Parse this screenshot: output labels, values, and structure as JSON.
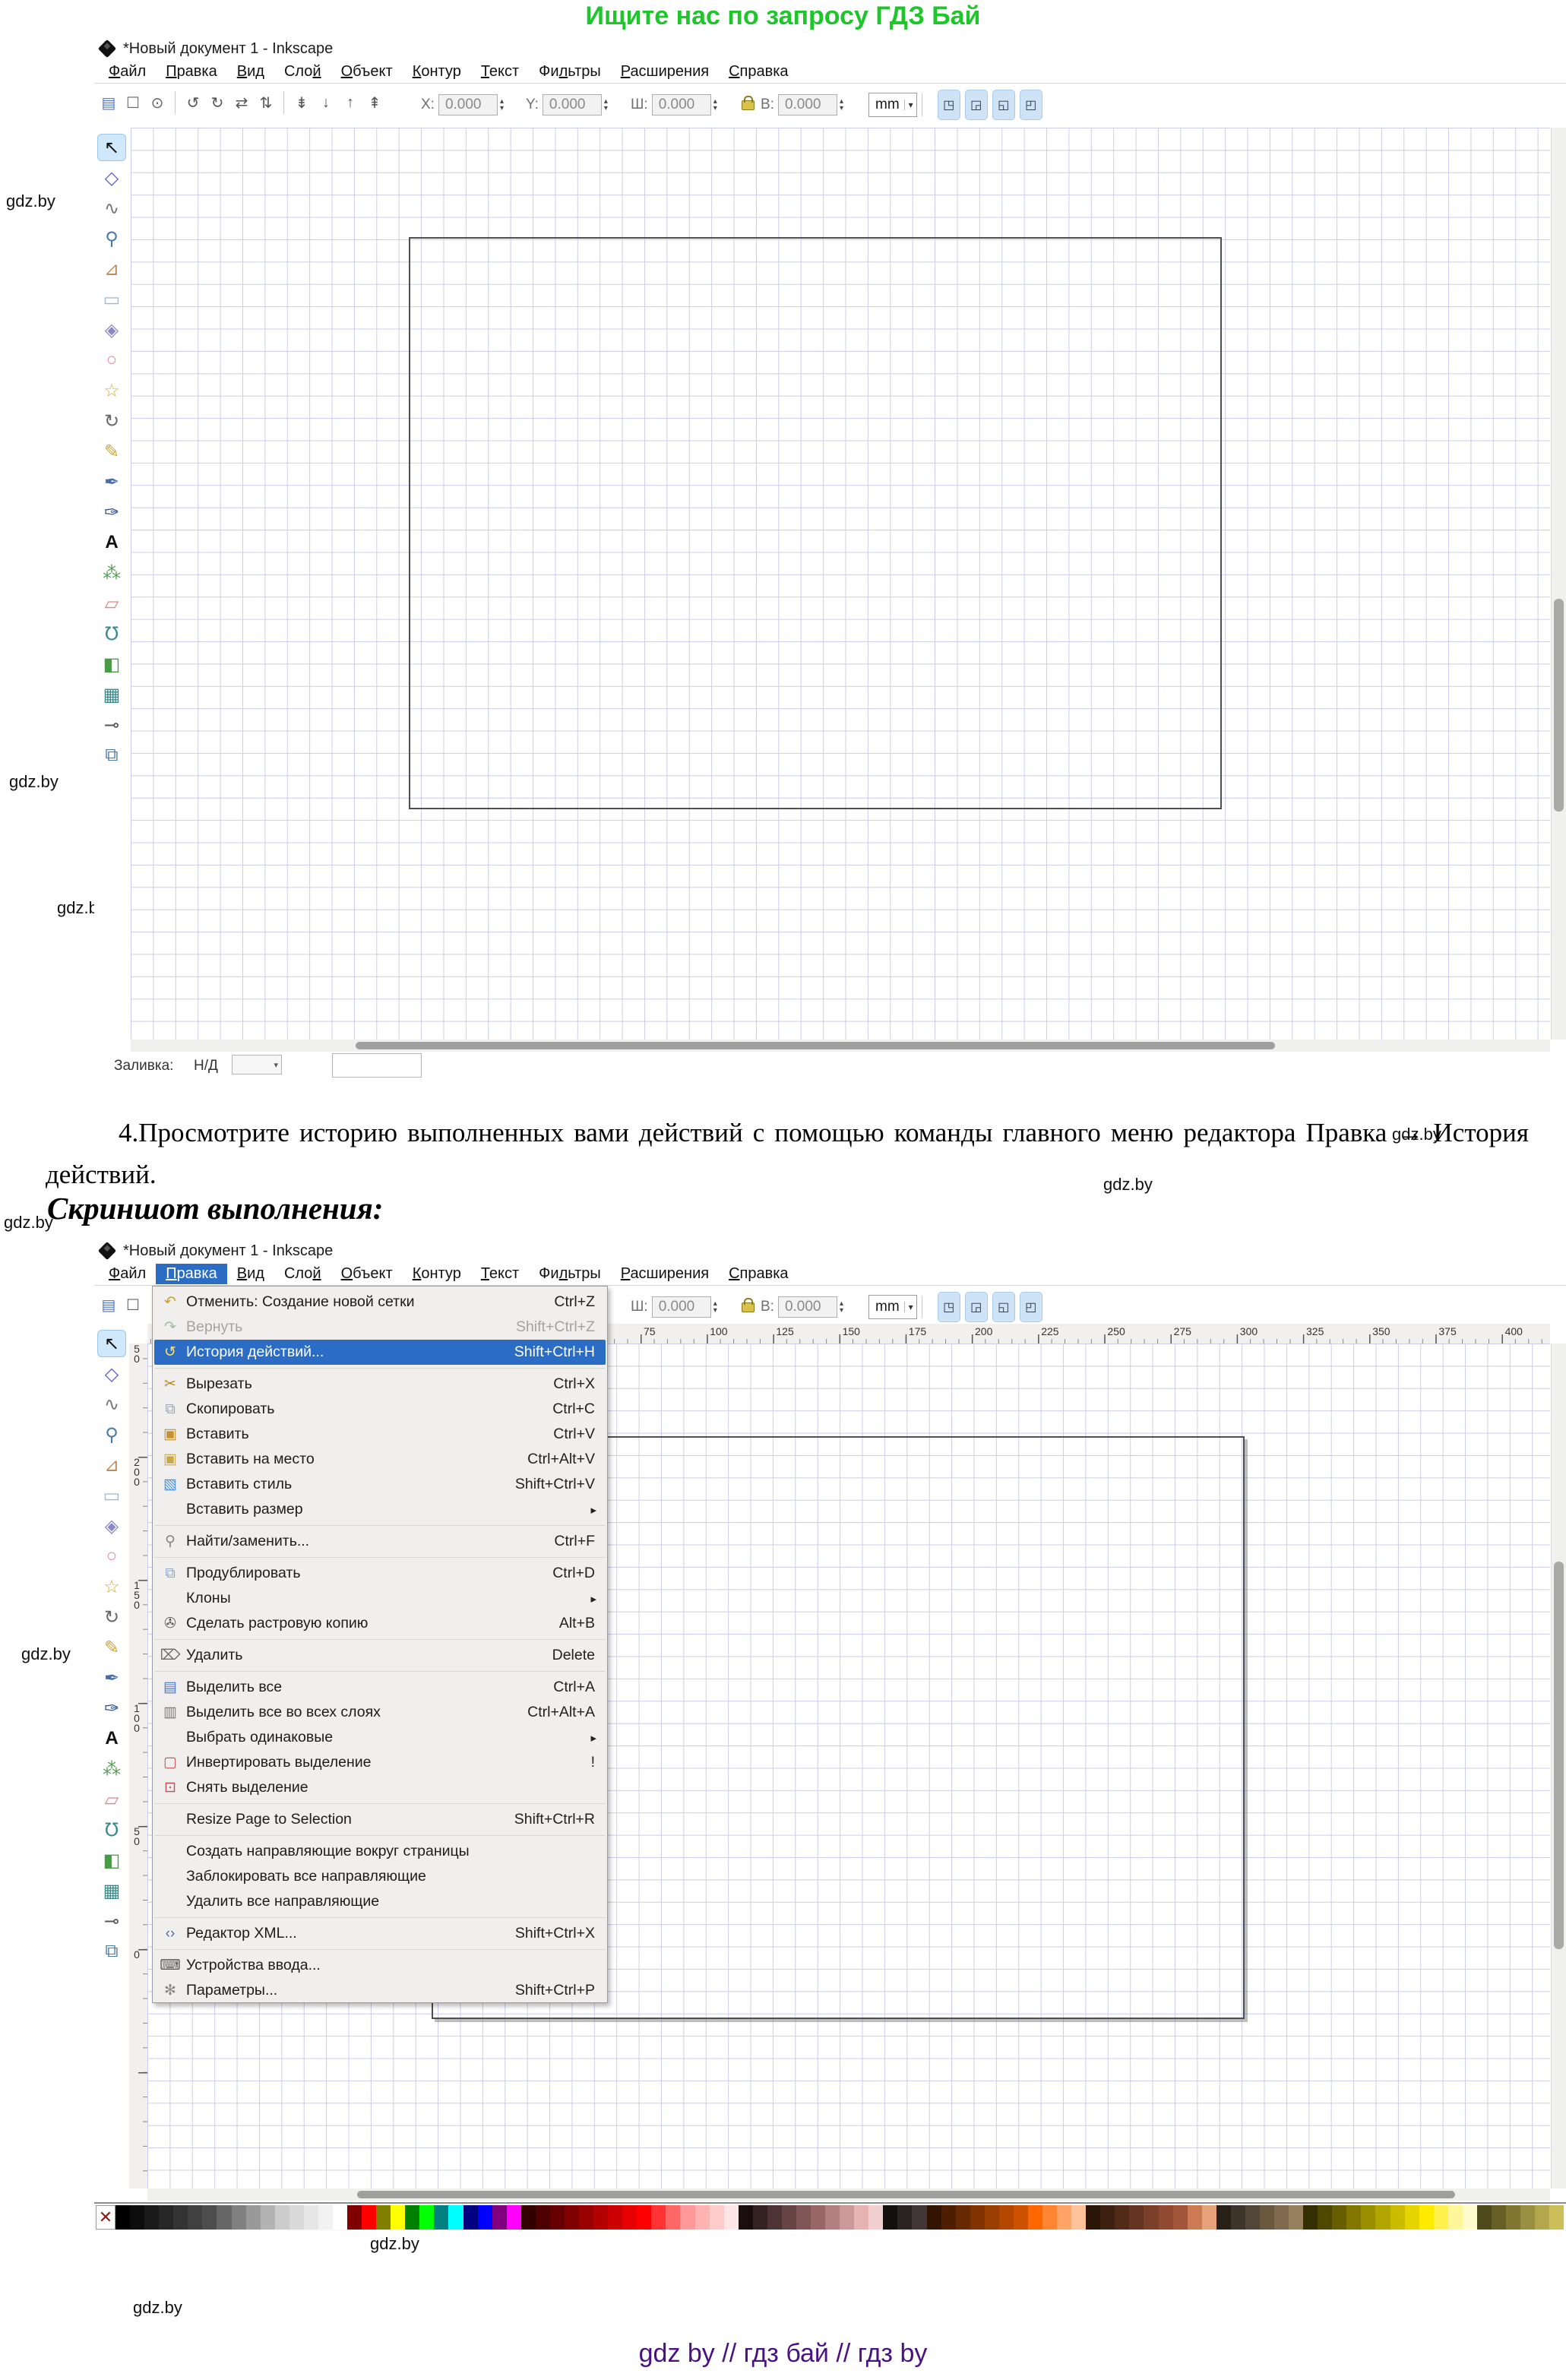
{
  "banner_top": {
    "text": "Ищите нас по запросу ГДЗ Бай",
    "color": "#1ec52b"
  },
  "footer": {
    "text": "gdz by  //  гдз бай  //  гдз by",
    "color": "#4a1280"
  },
  "watermark": {
    "text": "gdz.by",
    "positions": [
      [
        800,
        52,
        22
      ],
      [
        1790,
        103,
        22
      ],
      [
        1356,
        156,
        22
      ],
      [
        8,
        252,
        22
      ],
      [
        462,
        398,
        22
      ],
      [
        280,
        572,
        22
      ],
      [
        955,
        660,
        22
      ],
      [
        1884,
        836,
        17
      ],
      [
        1336,
        966,
        22
      ],
      [
        12,
        1016,
        22
      ],
      [
        995,
        1082,
        22
      ],
      [
        75,
        1182,
        22
      ],
      [
        575,
        1396,
        22
      ],
      [
        1832,
        1480,
        22
      ],
      [
        1452,
        1546,
        22
      ],
      [
        5,
        1596,
        22
      ],
      [
        1740,
        1648,
        22
      ],
      [
        405,
        1845,
        22
      ],
      [
        1775,
        1886,
        17
      ],
      [
        848,
        1972,
        22
      ],
      [
        445,
        2066,
        22
      ],
      [
        1142,
        2116,
        22
      ],
      [
        28,
        2164,
        22
      ],
      [
        1785,
        2316,
        22
      ],
      [
        1728,
        2528,
        22
      ],
      [
        1498,
        2588,
        22
      ],
      [
        935,
        2710,
        22
      ],
      [
        1932,
        2886,
        22
      ],
      [
        487,
        2940,
        22
      ],
      [
        175,
        3024,
        22
      ]
    ]
  },
  "instruction": {
    "paragraph": "4.Просмотрите историю выполненных вами действий с помощью команды главного меню редактора Правка → История действий.",
    "heading": "Скриншот выполнения:"
  },
  "window": {
    "title": "*Новый документ 1 - Inkscape",
    "menus": [
      {
        "label": "Файл",
        "u": 0
      },
      {
        "label": "Правка",
        "u": 0
      },
      {
        "label": "Вид",
        "u": 0
      },
      {
        "label": "Слой",
        "u": 3
      },
      {
        "label": "Объект",
        "u": 0
      },
      {
        "label": "Контур",
        "u": 0
      },
      {
        "label": "Текст",
        "u": 0
      },
      {
        "label": "Фильтры",
        "u": 2
      },
      {
        "label": "Расширения",
        "u": 0
      },
      {
        "label": "Справка",
        "u": 0
      }
    ],
    "active_menu": "Правка",
    "toolbar": {
      "command_icons": [
        {
          "name": "document-properties-icon",
          "glyph": "▤",
          "color": "#4a76c8"
        },
        {
          "name": "select-region-icon",
          "glyph": "☐",
          "color": "#666666"
        },
        {
          "name": "select-touch-icon",
          "glyph": "⊙",
          "color": "#666666"
        },
        {
          "sep": true
        },
        {
          "name": "rotate-ccw-icon",
          "glyph": "↺",
          "color": "#555555"
        },
        {
          "name": "rotate-cw-icon",
          "glyph": "↻",
          "color": "#555555"
        },
        {
          "name": "flip-horizontal-icon",
          "glyph": "⇄",
          "color": "#555555"
        },
        {
          "name": "flip-vertical-icon",
          "glyph": "⇅",
          "color": "#555555"
        },
        {
          "sep": true
        },
        {
          "name": "lower-to-bottom-icon",
          "glyph": "⇟",
          "color": "#555555"
        },
        {
          "name": "lower-icon",
          "glyph": "↓",
          "color": "#555555"
        },
        {
          "name": "raise-icon",
          "glyph": "↑",
          "color": "#555555"
        },
        {
          "name": "raise-to-top-icon",
          "glyph": "⇞",
          "color": "#555555"
        }
      ],
      "fields": [
        {
          "label": "X:",
          "value": "0.000"
        },
        {
          "label": "Y:",
          "value": "0.000"
        },
        {
          "label": "Ш:",
          "value": "0.000"
        },
        {
          "label": "В:",
          "value": "0.000"
        }
      ],
      "unit": "mm",
      "snap_buttons": [
        {
          "name": "snap-bbox-icon",
          "glyph": "◳"
        },
        {
          "name": "snap-nodes-icon",
          "glyph": "◲"
        },
        {
          "name": "snap-paths-icon",
          "glyph": "◱"
        },
        {
          "name": "snap-page-icon",
          "glyph": "◰"
        }
      ]
    },
    "tools": [
      {
        "name": "selector-tool",
        "glyph": "↖",
        "color": "#111111",
        "active": true
      },
      {
        "name": "node-editor-tool",
        "glyph": "◇",
        "color": "#5a5ad2"
      },
      {
        "name": "tweak-tool",
        "glyph": "∿",
        "color": "#777777"
      },
      {
        "name": "zoom-tool",
        "glyph": "⚲",
        "color": "#4a7ba6"
      },
      {
        "name": "measure-tool",
        "glyph": "⊿",
        "color": "#c08a5a"
      },
      {
        "name": "rectangle-tool",
        "glyph": "▭",
        "color": "#9db8d2"
      },
      {
        "name": "box3d-tool",
        "glyph": "◈",
        "color": "#8888c8"
      },
      {
        "name": "ellipse-tool",
        "glyph": "○",
        "color": "#e08a9a"
      },
      {
        "name": "star-tool",
        "glyph": "☆",
        "color": "#d4af37"
      },
      {
        "name": "spiral-tool",
        "glyph": "↻",
        "color": "#666666"
      },
      {
        "name": "pencil-tool",
        "glyph": "✎",
        "color": "#caa53d"
      },
      {
        "name": "bezier-pen-tool",
        "glyph": "✒",
        "color": "#4a6da7"
      },
      {
        "name": "calligraphy-tool",
        "glyph": "✑",
        "color": "#2f4a7a"
      },
      {
        "name": "text-tool",
        "glyph": "A",
        "color": "#111111"
      },
      {
        "name": "spray-tool",
        "glyph": "⁂",
        "color": "#5aa05a"
      },
      {
        "name": "eraser-tool",
        "glyph": "▱",
        "color": "#dd8888"
      },
      {
        "name": "paint-bucket-tool",
        "glyph": "℧",
        "color": "#3a8a8a"
      },
      {
        "name": "gradient-tool",
        "glyph": "◧",
        "color": "#4a9a4a"
      },
      {
        "name": "mesh-tool",
        "glyph": "▦",
        "color": "#3a8a8a"
      },
      {
        "name": "dropper-tool",
        "glyph": "⊸",
        "color": "#555555"
      },
      {
        "name": "connector-tool",
        "glyph": "⧉",
        "color": "#4a7ba6"
      }
    ],
    "statusbar": {
      "fill_label": "Заливка:",
      "fill_value": "Н/Д"
    },
    "hruler_numbers": [
      75,
      100,
      125,
      150,
      175,
      200,
      225,
      250,
      275,
      300,
      325,
      350,
      375,
      400
    ],
    "vruler_numbers": [
      250,
      200,
      150,
      100,
      50,
      0
    ]
  },
  "edit_menu": {
    "items": [
      {
        "label": "Отменить: Создание новой сетки",
        "shortcut": "Ctrl+Z",
        "icon": "undo-icon",
        "glyph": "↶",
        "color": "#c9a227"
      },
      {
        "label": "Вернуть",
        "shortcut": "Shift+Ctrl+Z",
        "icon": "redo-icon",
        "glyph": "↷",
        "color": "#9fbf9f",
        "disabled": true
      },
      {
        "label": "История действий...",
        "shortcut": "Shift+Ctrl+H",
        "icon": "history-icon",
        "glyph": "↺",
        "color": "#ffe066",
        "selected": true
      },
      {
        "sep": true
      },
      {
        "label": "Вырезать",
        "shortcut": "Ctrl+X",
        "icon": "cut-icon",
        "glyph": "✂",
        "color": "#b8860b"
      },
      {
        "label": "Скопировать",
        "shortcut": "Ctrl+C",
        "icon": "copy-icon",
        "glyph": "⧉",
        "color": "#9aa7b8"
      },
      {
        "label": "Вставить",
        "shortcut": "Ctrl+V",
        "icon": "paste-icon",
        "glyph": "▣",
        "color": "#c98f2a"
      },
      {
        "label": "Вставить на место",
        "shortcut": "Ctrl+Alt+V",
        "icon": "paste-in-place-icon",
        "glyph": "▣",
        "color": "#c9a84a"
      },
      {
        "label": "Вставить стиль",
        "shortcut": "Shift+Ctrl+V",
        "icon": "paste-style-icon",
        "glyph": "▧",
        "color": "#4a90d9"
      },
      {
        "label": "Вставить размер",
        "shortcut": "",
        "icon": "",
        "glyph": "",
        "submenu": true
      },
      {
        "sep": true
      },
      {
        "label": "Найти/заменить...",
        "shortcut": "Ctrl+F",
        "icon": "find-icon",
        "glyph": "⚲",
        "color": "#8a8a8a"
      },
      {
        "sep": true
      },
      {
        "label": "Продублировать",
        "shortcut": "Ctrl+D",
        "icon": "duplicate-icon",
        "glyph": "⧉",
        "color": "#8fa8c8"
      },
      {
        "label": "Клоны",
        "shortcut": "",
        "icon": "",
        "glyph": "",
        "submenu": true
      },
      {
        "label": "Сделать растровую копию",
        "shortcut": "Alt+B",
        "icon": "raster-copy-icon",
        "glyph": "✇",
        "color": "#5a5a5a"
      },
      {
        "sep": true
      },
      {
        "label": "Удалить",
        "shortcut": "Delete",
        "icon": "trash-icon",
        "glyph": "⌦",
        "color": "#6a6a6a"
      },
      {
        "sep": true
      },
      {
        "label": "Выделить все",
        "shortcut": "Ctrl+A",
        "icon": "select-all-icon",
        "glyph": "▤",
        "color": "#4a76c8"
      },
      {
        "label": "Выделить все во всех слоях",
        "shortcut": "Ctrl+Alt+A",
        "icon": "select-all-layers-icon",
        "glyph": "▥",
        "color": "#7a7a7a"
      },
      {
        "label": "Выбрать одинаковые",
        "shortcut": "",
        "icon": "",
        "glyph": "",
        "submenu": true
      },
      {
        "label": "Инвертировать выделение",
        "shortcut": "!",
        "icon": "invert-selection-icon",
        "glyph": "▢",
        "color": "#c0504d"
      },
      {
        "label": "Снять выделение",
        "shortcut": "",
        "icon": "deselect-icon",
        "glyph": "⊡",
        "color": "#c0504d"
      },
      {
        "sep": true
      },
      {
        "label": "Resize Page to Selection",
        "shortcut": "Shift+Ctrl+R",
        "icon": "",
        "glyph": ""
      },
      {
        "sep": true
      },
      {
        "label": "Создать направляющие вокруг страницы",
        "shortcut": "",
        "icon": "",
        "glyph": ""
      },
      {
        "label": "Заблокировать все направляющие",
        "shortcut": "",
        "icon": "",
        "glyph": ""
      },
      {
        "label": "Удалить все направляющие",
        "shortcut": "",
        "icon": "",
        "glyph": ""
      },
      {
        "sep": true
      },
      {
        "label": "Редактор XML...",
        "shortcut": "Shift+Ctrl+X",
        "icon": "xml-editor-icon",
        "glyph": "‹›",
        "color": "#4a6da7"
      },
      {
        "sep": true
      },
      {
        "label": "Устройства ввода...",
        "shortcut": "",
        "icon": "input-devices-icon",
        "glyph": "⌨",
        "color": "#555555"
      },
      {
        "label": "Параметры...",
        "shortcut": "Shift+Ctrl+P",
        "icon": "preferences-icon",
        "glyph": "✻",
        "color": "#888888"
      }
    ]
  },
  "palette": [
    "#000000",
    "#0d0d0d",
    "#1a1a1a",
    "#262626",
    "#333333",
    "#404040",
    "#4d4d4d",
    "#666666",
    "#808080",
    "#999999",
    "#b3b3b3",
    "#cccccc",
    "#d9d9d9",
    "#e6e6e6",
    "#f2f2f2",
    "#ffffff",
    "#800000",
    "#ff0000",
    "#808000",
    "#ffff00",
    "#008000",
    "#00ff00",
    "#008080",
    "#00ffff",
    "#000080",
    "#0000ff",
    "#800080",
    "#ff00ff",
    "#330000",
    "#4d0000",
    "#660000",
    "#800000",
    "#990000",
    "#b30000",
    "#cc0000",
    "#e60000",
    "#ff0000",
    "#ff3333",
    "#ff6666",
    "#ff9999",
    "#ffb3b3",
    "#ffcccc",
    "#ffe6e6",
    "#1a0d0d",
    "#332222",
    "#4d3333",
    "#664444",
    "#805555",
    "#996666",
    "#b38080",
    "#cc9999",
    "#e6b3b3",
    "#f2d0d0",
    "#140f0f",
    "#2b2222",
    "#423636",
    "#331400",
    "#4d1f00",
    "#662900",
    "#803300",
    "#993d00",
    "#b34700",
    "#cc5200",
    "#ff6600",
    "#ff8533",
    "#ffa366",
    "#ffc299",
    "#291507",
    "#3d2010",
    "#522a18",
    "#663521",
    "#7a4029",
    "#8f4a31",
    "#a3553a",
    "#cc7a52",
    "#e6a37a",
    "#262019",
    "#3d342a",
    "#524639",
    "#69583b",
    "#80694d",
    "#97805e",
    "#332f00",
    "#4d4700",
    "#665e00",
    "#807600",
    "#998d00",
    "#b3a500",
    "#ccbc00",
    "#e6d400",
    "#ffeb00",
    "#fff04d",
    "#fff599",
    "#fffacc",
    "#4d491a",
    "#665f26",
    "#807733",
    "#998f40",
    "#b3a74d",
    "#ccbf59"
  ]
}
